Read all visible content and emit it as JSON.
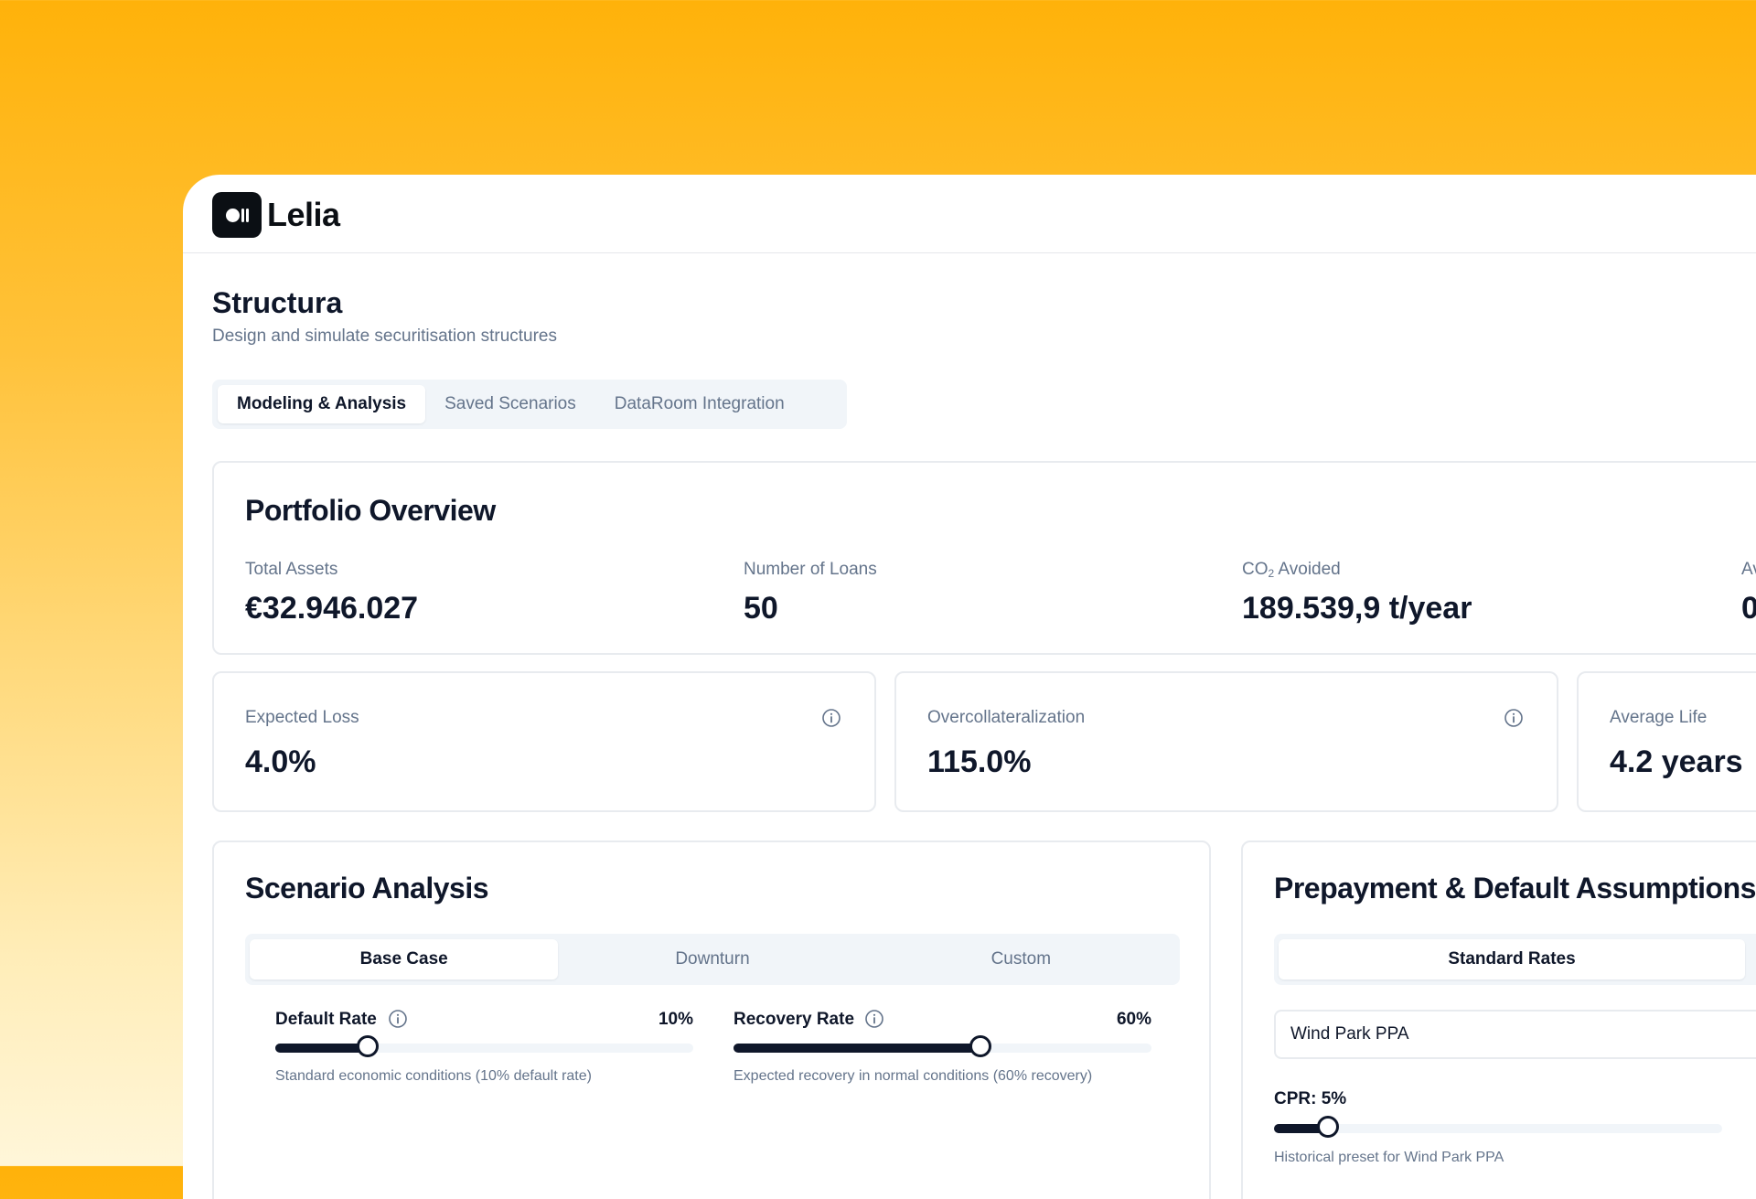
{
  "app": {
    "logo_text": "Lelia"
  },
  "page": {
    "title": "Structura",
    "subtitle": "Design and simulate securitisation structures"
  },
  "tabs": [
    {
      "label": "Modeling & Analysis",
      "active": true
    },
    {
      "label": "Saved Scenarios",
      "active": false
    },
    {
      "label": "DataRoom Integration",
      "active": false
    }
  ],
  "portfolio": {
    "title": "Portfolio Overview",
    "stats": [
      {
        "label": "Total Assets",
        "value": "€32.946.027"
      },
      {
        "label": "Number of Loans",
        "value": "50"
      },
      {
        "label_main": "CO",
        "label_sub": "2",
        "label_rest": " Avoided",
        "value": "189.539,9 t/year"
      },
      {
        "label": "Av",
        "value": "0"
      }
    ]
  },
  "metrics": [
    {
      "label": "Expected Loss",
      "value": "4.0%"
    },
    {
      "label": "Overcollateralization",
      "value": "115.0%"
    },
    {
      "label": "Average Life",
      "value": "4.2 years"
    }
  ],
  "scenario": {
    "title": "Scenario Analysis",
    "options": [
      {
        "label": "Base Case",
        "active": true
      },
      {
        "label": "Downturn",
        "active": false
      },
      {
        "label": "Custom",
        "active": false
      }
    ],
    "sliders": [
      {
        "label": "Default Rate",
        "display": "10%",
        "fraction": 0.22,
        "hint": "Standard economic conditions (10% default rate)"
      },
      {
        "label": "Recovery Rate",
        "display": "60%",
        "fraction": 0.59,
        "hint": "Expected recovery in normal conditions (60% recovery)"
      }
    ]
  },
  "assumptions": {
    "title": "Prepayment & Default Assumptions",
    "option": "Standard Rates",
    "select_value": "Wind Park PPA",
    "cpr_label": "CPR: 5%",
    "cpr_fraction": 0.12,
    "cpr_hint": "Historical preset for Wind Park PPA"
  },
  "colors": {
    "accent": "#0F172A",
    "muted": "#64748B",
    "border": "#E8EBEF",
    "background_top": "#FFB20A"
  }
}
